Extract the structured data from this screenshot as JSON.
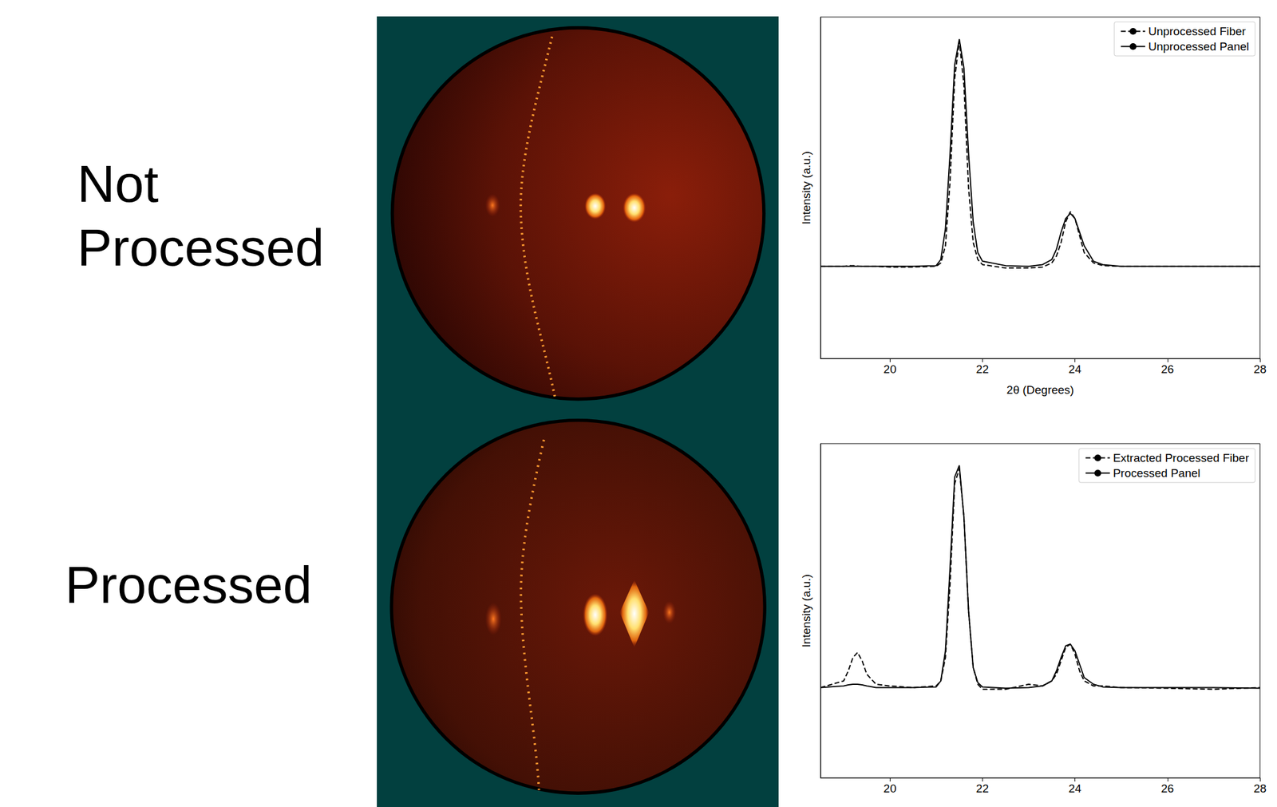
{
  "row_labels": [
    "Not Processed",
    "Processed"
  ],
  "chart_data": [
    {
      "type": "line",
      "xlabel": "2θ (Degrees)",
      "ylabel": "Intensity (a.u.)",
      "x": [
        18.5,
        19,
        19.1,
        19.2,
        19.3,
        19.4,
        19.5,
        19.7,
        20,
        20.5,
        21,
        21.1,
        21.2,
        21.3,
        21.4,
        21.5,
        21.6,
        21.7,
        21.8,
        21.9,
        22,
        22.5,
        23,
        23.3,
        23.5,
        23.6,
        23.7,
        23.8,
        23.9,
        24,
        24.1,
        24.2,
        24.4,
        24.6,
        25,
        26,
        27,
        28
      ],
      "xlim": [
        18.5,
        28
      ],
      "xticks": [
        20,
        22,
        24,
        26,
        28
      ],
      "ylim": [
        0,
        1
      ],
      "yticks": [],
      "legend": "upper right",
      "tick_labels": "x",
      "grid": false,
      "series": [
        {
          "name": "Unprocessed Fiber",
          "color": "#000000",
          "line_style": "dashed",
          "values": [
            0.27,
            0.27,
            0.272,
            0.272,
            0.271,
            0.27,
            0.27,
            0.27,
            0.268,
            0.268,
            0.27,
            0.28,
            0.33,
            0.52,
            0.82,
            0.93,
            0.8,
            0.5,
            0.34,
            0.29,
            0.275,
            0.265,
            0.265,
            0.268,
            0.28,
            0.3,
            0.34,
            0.4,
            0.43,
            0.41,
            0.36,
            0.31,
            0.28,
            0.272,
            0.27,
            0.27,
            0.27,
            0.27
          ]
        },
        {
          "name": "Unprocessed Panel",
          "color": "#000000",
          "line_style": "solid",
          "values": [
            0.27,
            0.27,
            0.27,
            0.27,
            0.27,
            0.27,
            0.27,
            0.27,
            0.27,
            0.27,
            0.272,
            0.29,
            0.38,
            0.6,
            0.86,
            0.935,
            0.85,
            0.6,
            0.4,
            0.31,
            0.285,
            0.272,
            0.27,
            0.275,
            0.29,
            0.32,
            0.37,
            0.41,
            0.425,
            0.41,
            0.37,
            0.33,
            0.285,
            0.275,
            0.27,
            0.27,
            0.27,
            0.27
          ]
        }
      ]
    },
    {
      "type": "line",
      "ylabel": "Intensity (a.u.)",
      "x": [
        18.5,
        19,
        19.1,
        19.2,
        19.3,
        19.4,
        19.5,
        19.7,
        20,
        20.5,
        21,
        21.1,
        21.2,
        21.3,
        21.4,
        21.5,
        21.6,
        21.7,
        21.8,
        21.9,
        22,
        22.5,
        23,
        23.3,
        23.5,
        23.6,
        23.7,
        23.8,
        23.9,
        24,
        24.1,
        24.2,
        24.4,
        24.6,
        25,
        26,
        27,
        28
      ],
      "xlim": [
        18.5,
        28
      ],
      "xticks": [
        20,
        22,
        24,
        26,
        28
      ],
      "ylim": [
        0,
        1
      ],
      "yticks": [],
      "legend": "upper right",
      "tick_labels": "x",
      "grid": false,
      "series": [
        {
          "name": "Extracted Processed Fiber",
          "color": "#000000",
          "line_style": "dashed",
          "values": [
            0.27,
            0.29,
            0.32,
            0.36,
            0.375,
            0.35,
            0.31,
            0.28,
            0.275,
            0.27,
            0.275,
            0.29,
            0.36,
            0.58,
            0.88,
            0.925,
            0.78,
            0.5,
            0.33,
            0.28,
            0.265,
            0.265,
            0.28,
            0.275,
            0.29,
            0.31,
            0.35,
            0.39,
            0.4,
            0.37,
            0.32,
            0.29,
            0.275,
            0.275,
            0.27,
            0.268,
            0.265,
            0.27
          ]
        },
        {
          "name": "Processed Panel",
          "color": "#000000",
          "line_style": "solid",
          "values": [
            0.27,
            0.275,
            0.278,
            0.28,
            0.28,
            0.278,
            0.275,
            0.27,
            0.27,
            0.27,
            0.272,
            0.29,
            0.38,
            0.63,
            0.9,
            0.935,
            0.78,
            0.5,
            0.33,
            0.285,
            0.272,
            0.268,
            0.27,
            0.275,
            0.29,
            0.32,
            0.36,
            0.395,
            0.4,
            0.38,
            0.34,
            0.3,
            0.28,
            0.272,
            0.27,
            0.27,
            0.27,
            0.268
          ]
        }
      ]
    }
  ]
}
